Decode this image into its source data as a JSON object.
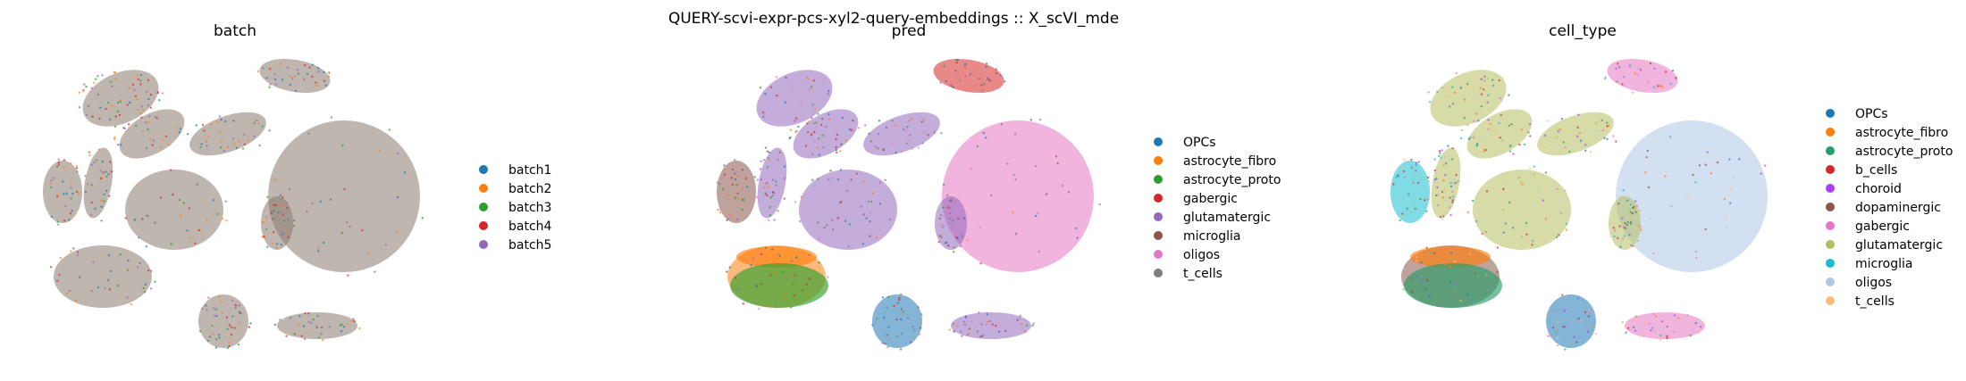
{
  "figure": {
    "suptitle": "QUERY-scvi-expr-pcs-xyl2-query-embeddings :: X_scVI_mde"
  },
  "chart_data": [
    {
      "type": "scatter",
      "title": "batch",
      "categories": [
        "batch1",
        "batch2",
        "batch3",
        "batch4",
        "batch5"
      ],
      "colors": [
        "#1f77b4",
        "#ff7f0e",
        "#2ca02c",
        "#d62728",
        "#9467bd"
      ],
      "grid": false,
      "axes": "off",
      "legend": "right",
      "xlabel": "",
      "ylabel": ""
    },
    {
      "type": "scatter",
      "title": "pred",
      "categories": [
        "OPCs",
        "astrocyte_fibro",
        "astrocyte_proto",
        "gabergic",
        "glutamatergic",
        "microglia",
        "oligos",
        "t_cells"
      ],
      "colors": [
        "#1f77b4",
        "#ff7f0e",
        "#2ca02c",
        "#d62728",
        "#9467bd",
        "#8c564b",
        "#e377c2",
        "#7f7f7f"
      ],
      "grid": false,
      "axes": "off",
      "legend": "right",
      "xlabel": "",
      "ylabel": ""
    },
    {
      "type": "scatter",
      "title": "cell_type",
      "categories": [
        "OPCs",
        "astrocyte_fibro",
        "astrocyte_proto",
        "b_cells",
        "choroid",
        "dopaminergic",
        "gabergic",
        "glutamatergic",
        "microglia",
        "oligos",
        "t_cells"
      ],
      "colors": [
        "#1f77b4",
        "#ff7f0e",
        "#279e68",
        "#d62728",
        "#aa40fc",
        "#8c564b",
        "#e377c2",
        "#b5bd61",
        "#17becf",
        "#aec7e8",
        "#ffbb78"
      ],
      "grid": false,
      "axes": "off",
      "legend": "right",
      "xlabel": "",
      "ylabel": ""
    }
  ]
}
